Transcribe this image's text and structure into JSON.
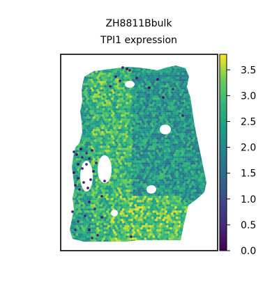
{
  "chart_data": {
    "type": "scatter",
    "title_line1": "ZH8811Bbulk",
    "title_line2": "TPI1 expression",
    "xlabel": "",
    "ylabel": "",
    "colorbar": {
      "colormap": "viridis",
      "range": [
        0.0,
        3.8
      ],
      "ticks": [
        0.0,
        0.5,
        1.0,
        1.5,
        2.0,
        2.5,
        3.0,
        3.5
      ],
      "tick_labels": [
        "0.0",
        "0.5",
        "1.0",
        "1.5",
        "2.0",
        "2.5",
        "3.0",
        "3.5"
      ]
    },
    "colors": {
      "low": "#440154",
      "mid": "#21918c",
      "high": "#fde725"
    }
  }
}
